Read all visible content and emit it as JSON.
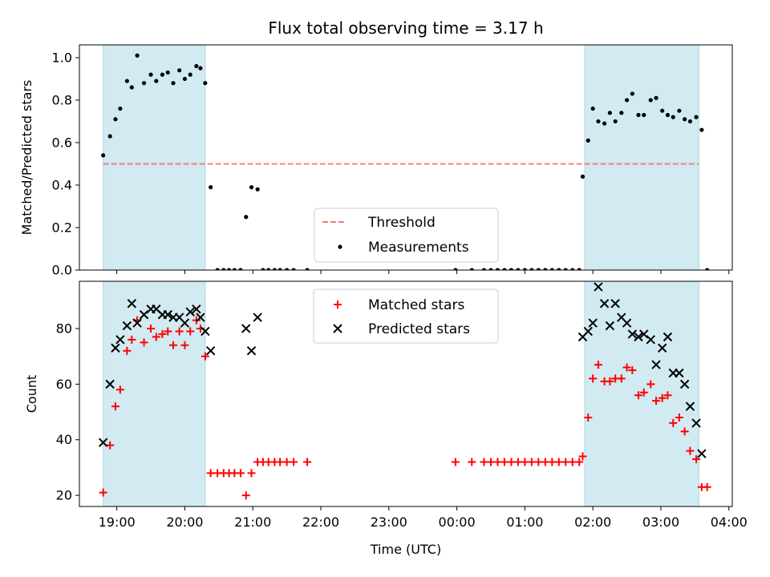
{
  "title": "Flux total observing time = 3.17 h",
  "x_axis": {
    "label": "Time (UTC)",
    "ticks": [
      {
        "h": 19,
        "label": "19:00"
      },
      {
        "h": 20,
        "label": "20:00"
      },
      {
        "h": 21,
        "label": "21:00"
      },
      {
        "h": 22,
        "label": "22:00"
      },
      {
        "h": 23,
        "label": "23:00"
      },
      {
        "h": 24,
        "label": "00:00"
      },
      {
        "h": 25,
        "label": "01:00"
      },
      {
        "h": 26,
        "label": "02:00"
      },
      {
        "h": 27,
        "label": "03:00"
      },
      {
        "h": 28,
        "label": "04:00"
      }
    ],
    "range": [
      18.45,
      28.05
    ]
  },
  "colors": {
    "shade": "#add8e6",
    "threshold": "#f08080",
    "measurements": "#000000",
    "matched": "#ff0000",
    "predicted": "#000000"
  },
  "chart_data": [
    {
      "type": "scatter",
      "ylabel": "Matched/Predicted stars",
      "ylim": [
        0,
        1.06
      ],
      "yticks": [
        0.0,
        0.2,
        0.4,
        0.6,
        0.8,
        1.0
      ],
      "ytick_labels": [
        "0.0",
        "0.2",
        "0.4",
        "0.6",
        "0.8",
        "1.0"
      ],
      "legend": {
        "threshold": "Threshold",
        "measurements": "Measurements",
        "placement": "lower center"
      },
      "shaded_intervals": [
        [
          18.8,
          20.3
        ],
        [
          25.88,
          27.56
        ]
      ],
      "threshold": 0.5,
      "threshold_span": [
        18.8,
        27.56
      ],
      "series": [
        {
          "name": "Measurements",
          "x": [
            18.8,
            18.9,
            18.98,
            19.05,
            19.15,
            19.22,
            19.3,
            19.4,
            19.5,
            19.58,
            19.67,
            19.75,
            19.83,
            19.92,
            20.0,
            20.08,
            20.17,
            20.23,
            20.3,
            20.38,
            20.48,
            20.57,
            20.65,
            20.73,
            20.82,
            20.9,
            20.98,
            21.07,
            21.15,
            21.23,
            21.32,
            21.4,
            21.5,
            21.6,
            21.8,
            23.98,
            24.22,
            24.4,
            24.5,
            24.6,
            24.7,
            24.8,
            24.9,
            25.0,
            25.1,
            25.2,
            25.3,
            25.4,
            25.5,
            25.6,
            25.7,
            25.8,
            25.85,
            25.93,
            26.0,
            26.08,
            26.17,
            26.25,
            26.33,
            26.42,
            26.5,
            26.58,
            26.67,
            26.75,
            26.85,
            26.93,
            27.02,
            27.1,
            27.18,
            27.27,
            27.35,
            27.43,
            27.52,
            27.6,
            27.68
          ],
          "y": [
            0.54,
            0.63,
            0.71,
            0.76,
            0.89,
            0.86,
            1.01,
            0.88,
            0.92,
            0.89,
            0.92,
            0.93,
            0.88,
            0.94,
            0.9,
            0.92,
            0.96,
            0.95,
            0.88,
            0.39,
            0.0,
            0.0,
            0.0,
            0.0,
            0.0,
            0.25,
            0.39,
            0.38,
            0.0,
            0.0,
            0.0,
            0.0,
            0.0,
            0.0,
            0.0,
            0.0,
            0.0,
            0.0,
            0.0,
            0.0,
            0.0,
            0.0,
            0.0,
            0.0,
            0.0,
            0.0,
            0.0,
            0.0,
            0.0,
            0.0,
            0.0,
            0.0,
            0.44,
            0.61,
            0.76,
            0.7,
            0.69,
            0.74,
            0.7,
            0.74,
            0.8,
            0.83,
            0.73,
            0.73,
            0.8,
            0.81,
            0.75,
            0.73,
            0.72,
            0.75,
            0.71,
            0.7,
            0.72,
            0.66,
            0.0
          ]
        }
      ]
    },
    {
      "type": "scatter",
      "ylabel": "Count",
      "ylim": [
        16,
        97
      ],
      "yticks": [
        20,
        40,
        60,
        80
      ],
      "ytick_labels": [
        "20",
        "40",
        "60",
        "80"
      ],
      "legend": {
        "matched": "Matched stars",
        "predicted": "Predicted stars",
        "placement": "upper center"
      },
      "shaded_intervals": [
        [
          18.8,
          20.3
        ],
        [
          25.88,
          27.56
        ]
      ],
      "series": [
        {
          "name": "Matched stars",
          "x": [
            18.8,
            18.9,
            18.98,
            19.05,
            19.15,
            19.22,
            19.3,
            19.4,
            19.5,
            19.58,
            19.67,
            19.75,
            19.83,
            19.92,
            20.0,
            20.08,
            20.17,
            20.23,
            20.3,
            20.38,
            20.48,
            20.57,
            20.65,
            20.73,
            20.82,
            20.9,
            20.98,
            21.07,
            21.15,
            21.23,
            21.32,
            21.4,
            21.5,
            21.6,
            21.8,
            23.98,
            24.22,
            24.4,
            24.5,
            24.6,
            24.7,
            24.8,
            24.9,
            25.0,
            25.1,
            25.2,
            25.3,
            25.4,
            25.5,
            25.6,
            25.7,
            25.8,
            25.85,
            25.93,
            26.0,
            26.08,
            26.17,
            26.25,
            26.33,
            26.42,
            26.5,
            26.58,
            26.67,
            26.75,
            26.85,
            26.93,
            27.02,
            27.1,
            27.18,
            27.27,
            27.35,
            27.43,
            27.52,
            27.6,
            27.68
          ],
          "y": [
            21,
            38,
            52,
            58,
            72,
            76,
            83,
            75,
            80,
            77,
            78,
            79,
            74,
            79,
            74,
            79,
            83,
            80,
            70,
            28,
            28,
            28,
            28,
            28,
            28,
            20,
            28,
            32,
            32,
            32,
            32,
            32,
            32,
            32,
            32,
            32,
            32,
            32,
            32,
            32,
            32,
            32,
            32,
            32,
            32,
            32,
            32,
            32,
            32,
            32,
            32,
            32,
            34,
            48,
            62,
            67,
            61,
            61,
            62,
            62,
            66,
            65,
            56,
            57,
            60,
            54,
            55,
            56,
            46,
            48,
            43,
            36,
            33,
            23,
            23
          ]
        },
        {
          "name": "Predicted stars",
          "x": [
            18.8,
            18.9,
            18.98,
            19.05,
            19.15,
            19.22,
            19.3,
            19.4,
            19.5,
            19.58,
            19.67,
            19.75,
            19.83,
            19.92,
            20.0,
            20.08,
            20.17,
            20.23,
            20.3,
            20.38,
            20.9,
            20.98,
            21.07,
            25.85,
            25.93,
            26.0,
            26.08,
            26.17,
            26.25,
            26.33,
            26.42,
            26.5,
            26.58,
            26.67,
            26.75,
            26.85,
            26.93,
            27.02,
            27.1,
            27.18,
            27.27,
            27.35,
            27.43,
            27.52,
            27.6
          ],
          "y": [
            39,
            60,
            73,
            76,
            81,
            89,
            82,
            85,
            87,
            87,
            85,
            85,
            84,
            84,
            82,
            86,
            87,
            84,
            79,
            72,
            80,
            72,
            84,
            77,
            79,
            82,
            95,
            89,
            81,
            89,
            84,
            82,
            78,
            77,
            78,
            76,
            67,
            73,
            77,
            64,
            64,
            60,
            52,
            46,
            35
          ]
        }
      ]
    }
  ]
}
